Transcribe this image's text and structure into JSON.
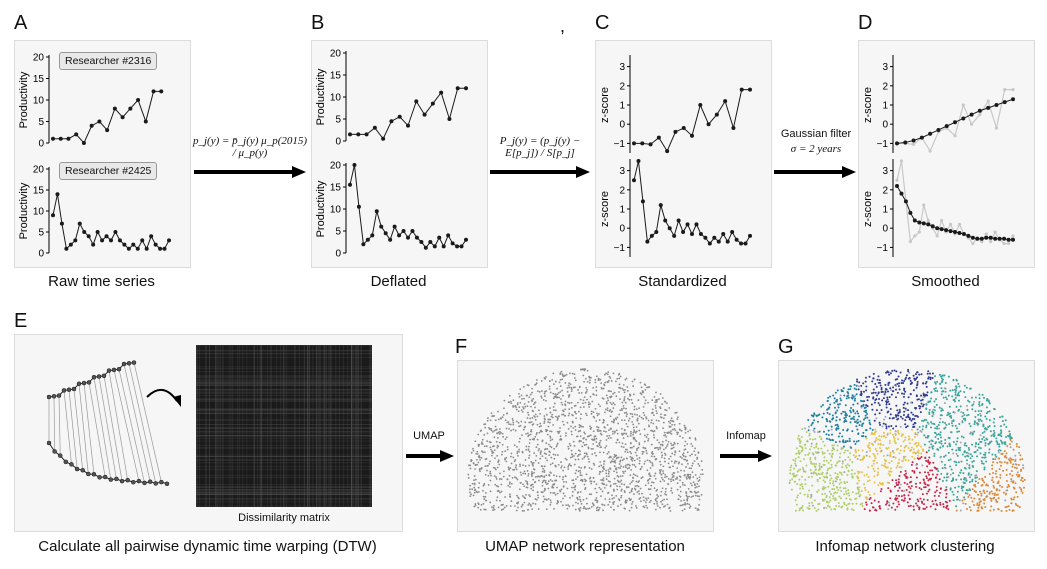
{
  "panels": {
    "A": {
      "letter": "A",
      "caption": "Raw time series",
      "ylabel": "Productivity",
      "badge_top": "Researcher #2316",
      "badge_bottom": "Researcher #2425",
      "ticks_top": [
        "0",
        "5",
        "10",
        "15",
        "20"
      ],
      "ticks_bottom": [
        "0",
        "5",
        "10",
        "15",
        "20"
      ]
    },
    "B": {
      "letter": "B",
      "caption": "Deflated",
      "ylabel": "Productivity",
      "ticks_top": [
        "0",
        "5",
        "10",
        "15",
        "20"
      ],
      "ticks_bottom": [
        "0",
        "5",
        "10",
        "15",
        "20"
      ]
    },
    "C": {
      "letter": "C",
      "caption": "Standardized",
      "ylabel": "z-score",
      "ticks_top": [
        "−1",
        "0",
        "1",
        "2",
        "3"
      ],
      "ticks_bottom": [
        "−1",
        "0",
        "1",
        "2",
        "3"
      ]
    },
    "D": {
      "letter": "D",
      "caption": "Smoothed",
      "ylabel": "z-score",
      "ticks_top": [
        "−1",
        "0",
        "1",
        "2",
        "3"
      ],
      "ticks_bottom": [
        "−1",
        "0",
        "1",
        "2",
        "3"
      ]
    },
    "E": {
      "letter": "E",
      "caption": "Calculate all pairwise dynamic time warping (DTW)",
      "matrix_label": "Dissimilarity matrix"
    },
    "F": {
      "letter": "F",
      "caption": "UMAP network representation"
    },
    "G": {
      "letter": "G",
      "caption": "Infomap network clustering"
    }
  },
  "stray_mark": ",",
  "arrows": {
    "ab_formula": "p_j(y) = p̄_j(y) μ_p(2015) / μ_p(y)",
    "bc_formula": "P_j(y) = (p_j(y) − E[p_j]) / S[p_j]",
    "cd_line1": "Gaussian filter",
    "cd_line2": "σ = 2 years",
    "ef_label": "UMAP",
    "fg_label": "Infomap"
  },
  "chart_data": [
    {
      "type": "line",
      "name": "raw-2316",
      "ylabel": "Productivity",
      "ylim": [
        0,
        20
      ],
      "x": [
        1,
        2,
        3,
        4,
        5,
        6,
        7,
        8,
        9,
        10,
        11,
        12,
        13,
        14,
        15,
        16
      ],
      "values": [
        1,
        1,
        1,
        2,
        0,
        4,
        5,
        3,
        8,
        6,
        8,
        10,
        5,
        12,
        12,
        null
      ]
    },
    {
      "type": "line",
      "name": "raw-2425",
      "ylabel": "Productivity",
      "ylim": [
        0,
        20
      ],
      "x": [
        1,
        2,
        3,
        4,
        5,
        6,
        7,
        8,
        9,
        10,
        11,
        12,
        13,
        14,
        15,
        16,
        17,
        18,
        19,
        20,
        21,
        22,
        23,
        24,
        25,
        26,
        27
      ],
      "values": [
        9,
        14,
        7,
        1,
        2,
        3,
        7,
        5,
        4,
        2,
        5,
        3,
        4,
        3,
        5,
        3,
        2,
        1,
        2,
        1,
        3,
        1,
        4,
        2,
        1,
        1,
        3
      ]
    },
    {
      "type": "line",
      "name": "deflated-2316",
      "ylabel": "Productivity",
      "ylim": [
        0,
        20
      ],
      "values": [
        1.5,
        1.5,
        1.5,
        3,
        0.5,
        4.5,
        5.5,
        3.5,
        9,
        6,
        8.5,
        11,
        5,
        12,
        12
      ]
    },
    {
      "type": "line",
      "name": "deflated-2425",
      "ylabel": "Productivity",
      "ylim": [
        0,
        20
      ],
      "values": [
        15.5,
        20,
        10.5,
        2,
        3,
        4,
        9.5,
        6,
        4.5,
        3,
        6,
        4,
        5,
        3.5,
        5,
        3.5,
        2.5,
        1.2,
        2.5,
        1.5,
        3.5,
        1.5,
        4,
        2.2,
        1.5,
        1.5,
        3
      ]
    },
    {
      "type": "line",
      "name": "standardized-2316",
      "ylabel": "z-score",
      "ylim": [
        -1.5,
        3.5
      ],
      "values": [
        -1,
        -1,
        -1.05,
        -0.7,
        -1.4,
        -0.4,
        -0.2,
        -0.6,
        1,
        0,
        0.5,
        1.2,
        -0.2,
        1.8,
        1.8
      ]
    },
    {
      "type": "line",
      "name": "standardized-2425",
      "ylabel": "z-score",
      "ylim": [
        -1.5,
        3.5
      ],
      "values": [
        2.5,
        3.5,
        1.4,
        -0.7,
        -0.4,
        -0.2,
        1.2,
        0.4,
        0,
        -0.4,
        0.4,
        -0.2,
        0.2,
        -0.3,
        0.2,
        -0.3,
        -0.5,
        -0.8,
        -0.5,
        -0.7,
        -0.3,
        -0.7,
        -0.2,
        -0.6,
        -0.8,
        -0.8,
        -0.4
      ]
    },
    {
      "type": "line",
      "name": "smoothed-2316",
      "ylabel": "z-score",
      "ylim": [
        -1.5,
        3.5
      ],
      "values": [
        -1,
        -0.95,
        -0.85,
        -0.7,
        -0.5,
        -0.3,
        -0.1,
        0.1,
        0.3,
        0.5,
        0.7,
        0.85,
        1.0,
        1.15,
        1.3
      ]
    },
    {
      "type": "line",
      "name": "smoothed-2425",
      "ylabel": "z-score",
      "ylim": [
        -1.5,
        3.5
      ],
      "values": [
        2.2,
        1.8,
        1.4,
        0.8,
        0.4,
        0.3,
        0.25,
        0.2,
        0.1,
        0.0,
        -0.05,
        -0.1,
        -0.15,
        -0.2,
        -0.25,
        -0.3,
        -0.4,
        -0.5,
        -0.55,
        -0.55,
        -0.5,
        -0.5,
        -0.55,
        -0.55,
        -0.55,
        -0.6,
        -0.6
      ]
    }
  ],
  "colors": {
    "panel_bg": "#f6f6f6",
    "line": "#1a1a1a",
    "ghost": "#c8c8c8",
    "umap": "#8a8a8a",
    "clusters": [
      "#2f3a8f",
      "#1f7fa0",
      "#3aa59b",
      "#e6c34a",
      "#b0cf6a",
      "#c7264a",
      "#d98a3a",
      "#9ea6b4"
    ]
  }
}
